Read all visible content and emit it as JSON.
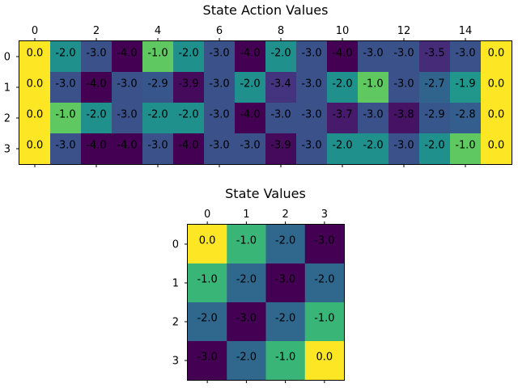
{
  "chart_data": [
    {
      "type": "heatmap",
      "title": "State Action Values",
      "x_ticks": [
        0,
        2,
        4,
        6,
        8,
        10,
        12,
        14
      ],
      "y_ticks": [
        0,
        1,
        2,
        3
      ],
      "colormap": "viridis",
      "vmin": -4,
      "vmax": 0,
      "cell_labels": true,
      "values": [
        [
          0.0,
          -2.0,
          -3.0,
          -4.0,
          -1.0,
          -2.0,
          -3.0,
          -4.0,
          -2.0,
          -3.0,
          -4.0,
          -3.0,
          -3.0,
          -3.5,
          -3.0,
          0.0
        ],
        [
          0.0,
          -3.0,
          -4.0,
          -3.0,
          -2.9,
          -3.9,
          -3.0,
          -2.0,
          -3.4,
          -3.0,
          -2.0,
          -1.0,
          -3.0,
          -2.7,
          -1.9,
          0.0
        ],
        [
          0.0,
          -1.0,
          -2.0,
          -3.0,
          -2.0,
          -2.0,
          -3.0,
          -4.0,
          -3.0,
          -3.0,
          -3.7,
          -3.0,
          -3.8,
          -2.9,
          -2.8,
          0.0
        ],
        [
          0.0,
          -3.0,
          -4.0,
          -4.0,
          -3.0,
          -4.0,
          -3.0,
          -3.0,
          -3.9,
          -3.0,
          -2.0,
          -2.0,
          -3.0,
          -2.0,
          -1.0,
          0.0
        ]
      ]
    },
    {
      "type": "heatmap",
      "title": "State Values",
      "x_ticks": [
        0,
        1,
        2,
        3
      ],
      "y_ticks": [
        0,
        1,
        2,
        3
      ],
      "colormap": "viridis",
      "vmin": -3,
      "vmax": 0,
      "cell_labels": true,
      "values": [
        [
          0.0,
          -1.0,
          -2.0,
          -3.0
        ],
        [
          -1.0,
          -2.0,
          -3.0,
          -2.0
        ],
        [
          -2.0,
          -3.0,
          -2.0,
          -1.0
        ],
        [
          -3.0,
          -2.0,
          -1.0,
          0.0
        ]
      ]
    }
  ]
}
